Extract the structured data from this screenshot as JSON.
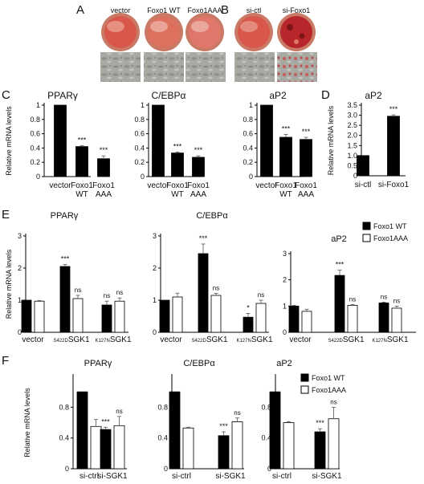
{
  "panel_letters": [
    "A",
    "B",
    "C",
    "D",
    "E",
    "F"
  ],
  "panel_a": {
    "dish_labels": [
      "vector",
      "Foxo1 WT",
      "Foxo1AAA"
    ]
  },
  "panel_b": {
    "dish_labels": [
      "si-ctl",
      "si-Foxo1"
    ]
  },
  "colors": {
    "dish_rim": "#c97a66",
    "dish_stain": "#d9574a",
    "dish_heavy_stain": "#b8252a",
    "micro_bg": "#a9a9a3",
    "bar_black": "#000000",
    "bar_white": "#ffffff"
  },
  "legend": {
    "wt": "Foxo1 WT",
    "aaa": "Foxo1AAA"
  },
  "chart_data": [
    {
      "panel": "C",
      "type": "bar",
      "title": "PPARγ",
      "ylabel": "Relative mRNA levels",
      "ylim": [
        0,
        1
      ],
      "yticks": [
        "0",
        "0.2",
        "0.4",
        "0.6",
        "0.8",
        "1"
      ],
      "categories": [
        [
          "vector"
        ],
        [
          "Foxo1",
          "WT"
        ],
        [
          "Foxo1",
          "AAA"
        ]
      ],
      "values": [
        1.0,
        0.42,
        0.25
      ],
      "errors": [
        0,
        0.015,
        0.04
      ],
      "sig": [
        "",
        "***",
        "***"
      ]
    },
    {
      "panel": "C",
      "type": "bar",
      "title": "C/EBPα",
      "ylabel": "",
      "ylim": [
        0,
        1
      ],
      "yticks": [
        "0",
        "0.2",
        "0.4",
        "0.6",
        "0.8",
        "1"
      ],
      "categories": [
        [
          "vector"
        ],
        [
          "Foxo1",
          "WT"
        ],
        [
          "Foxo1",
          "AAA"
        ]
      ],
      "values": [
        1.0,
        0.33,
        0.27
      ],
      "errors": [
        0,
        0.015,
        0.02
      ],
      "sig": [
        "",
        "***",
        "***"
      ]
    },
    {
      "panel": "C",
      "type": "bar",
      "title": "aP2",
      "ylabel": "",
      "ylim": [
        0,
        1
      ],
      "yticks": [
        "0",
        "0.2",
        "0.4",
        "0.6",
        "0.8",
        "1"
      ],
      "categories": [
        [
          "vector"
        ],
        [
          "Foxo1",
          "WT"
        ],
        [
          "Foxo1",
          "AAA"
        ]
      ],
      "values": [
        1.0,
        0.55,
        0.52
      ],
      "errors": [
        0,
        0.04,
        0.03
      ],
      "sig": [
        "",
        "***",
        "***"
      ]
    },
    {
      "panel": "D",
      "type": "bar",
      "title": "aP2",
      "ylabel": "Relative mRNA levels",
      "ylim": [
        0,
        3.5
      ],
      "yticks": [
        "0",
        "0.5",
        "1.0",
        "1.5",
        "2.0",
        "2.5",
        "3.0",
        "3.5"
      ],
      "categories": [
        [
          "si-ctl"
        ],
        [
          "si-Foxo1"
        ]
      ],
      "values": [
        1.0,
        2.95
      ],
      "errors": [
        0,
        0.07
      ],
      "sig": [
        "",
        "***"
      ]
    },
    {
      "panel": "E",
      "type": "bar",
      "title": "PPARγ",
      "ylabel": "Relative mRNA levels",
      "ylim": [
        0,
        3
      ],
      "yticks": [
        "0",
        "1",
        "2",
        "3"
      ],
      "categories": [
        "vector",
        "S422D SGK1",
        "K127N SGK1"
      ],
      "series": [
        {
          "name": "Foxo1 WT",
          "values": [
            1.0,
            2.05,
            0.85
          ],
          "errors": [
            0,
            0.06,
            0.12
          ],
          "sig": [
            "",
            "***",
            "ns"
          ]
        },
        {
          "name": "Foxo1AAA",
          "values": [
            0.97,
            1.05,
            0.97
          ],
          "errors": [
            0.02,
            0.1,
            0.1
          ],
          "sig": [
            "",
            "ns",
            "ns"
          ]
        }
      ]
    },
    {
      "panel": "E",
      "type": "bar",
      "title": "C/EBPα",
      "ylabel": "",
      "ylim": [
        0,
        3
      ],
      "yticks": [
        "0",
        "1",
        "2",
        "3"
      ],
      "categories": [
        "vector",
        "S422D SGK1",
        "K127N SGK1"
      ],
      "series": [
        {
          "name": "Foxo1 WT",
          "values": [
            1.0,
            2.45,
            0.47
          ],
          "errors": [
            0,
            0.3,
            0.12
          ],
          "sig": [
            "",
            "***",
            "*"
          ]
        },
        {
          "name": "Foxo1AAA",
          "values": [
            1.1,
            1.15,
            0.9
          ],
          "errors": [
            0.12,
            0.06,
            0.1
          ],
          "sig": [
            "",
            "ns",
            "ns"
          ]
        }
      ]
    },
    {
      "panel": "E",
      "type": "bar",
      "title": "aP2",
      "ylabel": "",
      "ylim": [
        0,
        3
      ],
      "yticks": [
        "0",
        "1",
        "2",
        "3"
      ],
      "categories": [
        "vector",
        "S422D SGK1",
        "K127N SGK1"
      ],
      "series": [
        {
          "name": "Foxo1 WT",
          "values": [
            1.0,
            2.17,
            1.12
          ],
          "errors": [
            0.03,
            0.2,
            0.03
          ],
          "sig": [
            "",
            "***",
            "ns"
          ]
        },
        {
          "name": "Foxo1AAA",
          "values": [
            0.8,
            1.03,
            0.92
          ],
          "errors": [
            0.08,
            0.03,
            0.08
          ],
          "sig": [
            "",
            "ns",
            "ns"
          ]
        }
      ]
    },
    {
      "panel": "F",
      "type": "bar",
      "title": "PPARγ",
      "ylabel": "Relative mRNA levels",
      "ylim": [
        0,
        1.2
      ],
      "yticks": [
        "0",
        "0.4",
        "0.8"
      ],
      "categories": [
        "si-ctrl",
        "si-SGK1"
      ],
      "series": [
        {
          "name": "Foxo1 WT",
          "values": [
            1.0,
            0.51
          ],
          "errors": [
            0,
            0.03
          ],
          "sig": [
            "",
            "***"
          ]
        },
        {
          "name": "Foxo1AAA",
          "values": [
            0.55,
            0.56
          ],
          "errors": [
            0.09,
            0.12
          ],
          "sig": [
            "",
            "ns"
          ]
        }
      ]
    },
    {
      "panel": "F",
      "type": "bar",
      "title": "C/EBPα",
      "ylabel": "",
      "ylim": [
        0,
        1.2
      ],
      "yticks": [
        "0",
        "0.4",
        "0.8"
      ],
      "categories": [
        "si-ctrl",
        "si-SGK1"
      ],
      "series": [
        {
          "name": "Foxo1 WT",
          "values": [
            1.0,
            0.43
          ],
          "errors": [
            0,
            0.05
          ],
          "sig": [
            "",
            "***"
          ]
        },
        {
          "name": "Foxo1AAA",
          "values": [
            0.53,
            0.61
          ],
          "errors": [
            0.01,
            0.05
          ],
          "sig": [
            "",
            "ns"
          ]
        }
      ]
    },
    {
      "panel": "F",
      "type": "bar",
      "title": "aP2",
      "ylabel": "",
      "ylim": [
        0,
        1.2
      ],
      "yticks": [
        "0",
        "0.4",
        "0.8"
      ],
      "categories": [
        "si-ctrl",
        "si-SGK1"
      ],
      "series": [
        {
          "name": "Foxo1 WT",
          "values": [
            1.0,
            0.48
          ],
          "errors": [
            0,
            0.04
          ],
          "sig": [
            "",
            "***"
          ]
        },
        {
          "name": "Foxo1AAA",
          "values": [
            0.6,
            0.65
          ],
          "errors": [
            0.01,
            0.15
          ],
          "sig": [
            "",
            "ns"
          ]
        }
      ]
    }
  ]
}
